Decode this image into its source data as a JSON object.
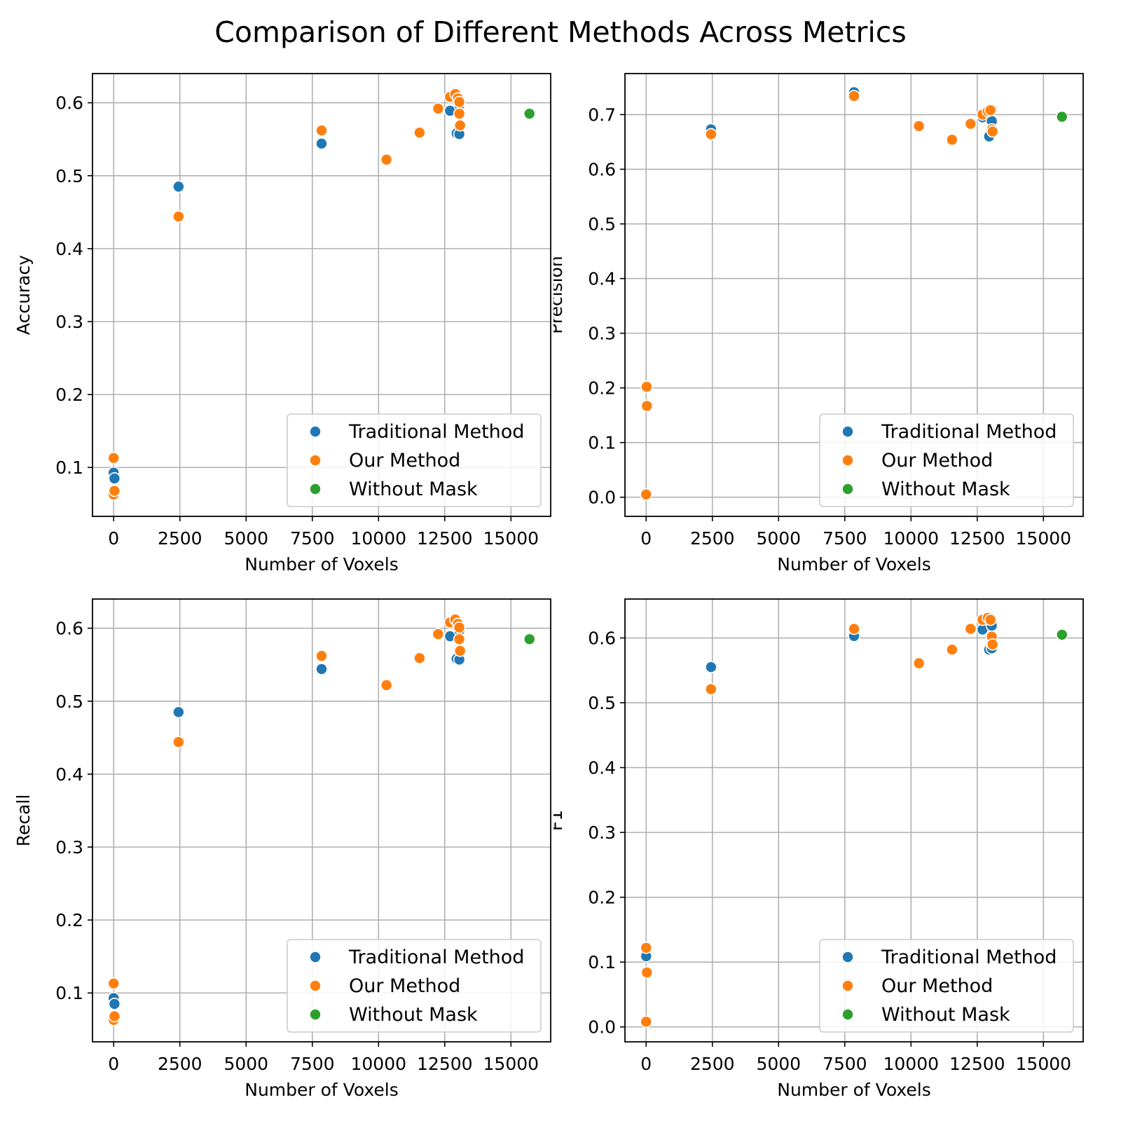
{
  "figure": {
    "title": "Comparison of Different Methods Across Metrics"
  },
  "legend": {
    "placement": "lower right",
    "entries": [
      {
        "label": "Traditional Method",
        "color": "#1f77b4"
      },
      {
        "label": "Our Method",
        "color": "#ff7f0e"
      },
      {
        "label": "Without Mask",
        "color": "#2ca02c"
      }
    ]
  },
  "chart_data": [
    {
      "type": "scatter",
      "xlabel": "Number of Voxels",
      "ylabel": "Accuracy",
      "xlim": [
        -800,
        16500
      ],
      "ylim": [
        0.033,
        0.64
      ],
      "xticks": [
        0,
        2500,
        5000,
        7500,
        10000,
        12500,
        15000
      ],
      "yticks": [
        0.1,
        0.2,
        0.3,
        0.4,
        0.5,
        0.6
      ],
      "ytick_labels": [
        "0.1",
        "0.2",
        "0.3",
        "0.4",
        "0.5",
        "0.6"
      ],
      "grid": true,
      "series": [
        {
          "name": "Traditional Method",
          "color": "#1f77b4",
          "points": [
            [
              0,
              0.093
            ],
            [
              30,
              0.085
            ],
            [
              2450,
              0.485
            ],
            [
              7850,
              0.544
            ],
            [
              12700,
              0.589
            ],
            [
              12950,
              0.558
            ],
            [
              13050,
              0.557
            ],
            [
              13050,
              0.597
            ]
          ]
        },
        {
          "name": "Our Method",
          "color": "#ff7f0e",
          "points": [
            [
              0,
              0.113
            ],
            [
              0,
              0.063
            ],
            [
              30,
              0.068
            ],
            [
              2450,
              0.444
            ],
            [
              7850,
              0.562
            ],
            [
              10300,
              0.522
            ],
            [
              11550,
              0.559
            ],
            [
              12250,
              0.592
            ],
            [
              12700,
              0.608
            ],
            [
              12900,
              0.612
            ],
            [
              13000,
              0.606
            ],
            [
              13050,
              0.601
            ],
            [
              13050,
              0.585
            ],
            [
              13080,
              0.569
            ]
          ]
        },
        {
          "name": "Without Mask",
          "color": "#2ca02c",
          "points": [
            [
              15700,
              0.585
            ]
          ]
        }
      ]
    },
    {
      "type": "scatter",
      "xlabel": "Number of Voxels",
      "ylabel": "Precision",
      "xlim": [
        -800,
        16500
      ],
      "ylim": [
        -0.035,
        0.775
      ],
      "xticks": [
        0,
        2500,
        5000,
        7500,
        10000,
        12500,
        15000
      ],
      "yticks": [
        0.0,
        0.1,
        0.2,
        0.3,
        0.4,
        0.5,
        0.6,
        0.7
      ],
      "ytick_labels": [
        "0.0",
        "0.1",
        "0.2",
        "0.3",
        "0.4",
        "0.5",
        "0.6",
        "0.7"
      ],
      "grid": true,
      "series": [
        {
          "name": "Traditional Method",
          "color": "#1f77b4",
          "points": [
            [
              2450,
              0.673
            ],
            [
              7850,
              0.741
            ],
            [
              12700,
              0.695
            ],
            [
              12950,
              0.66
            ],
            [
              13050,
              0.709
            ],
            [
              13050,
              0.688
            ]
          ]
        },
        {
          "name": "Our Method",
          "color": "#ff7f0e",
          "points": [
            [
              0,
              0.005
            ],
            [
              20,
              0.202
            ],
            [
              30,
              0.167
            ],
            [
              2450,
              0.664
            ],
            [
              7850,
              0.734
            ],
            [
              10300,
              0.679
            ],
            [
              11550,
              0.654
            ],
            [
              12250,
              0.683
            ],
            [
              12700,
              0.7
            ],
            [
              12900,
              0.706
            ],
            [
              13000,
              0.708
            ],
            [
              13050,
              0.673
            ],
            [
              13080,
              0.669
            ]
          ]
        },
        {
          "name": "Without Mask",
          "color": "#2ca02c",
          "points": [
            [
              15700,
              0.696
            ]
          ]
        }
      ]
    },
    {
      "type": "scatter",
      "xlabel": "Number of Voxels",
      "ylabel": "Recall",
      "xlim": [
        -800,
        16500
      ],
      "ylim": [
        0.033,
        0.64
      ],
      "xticks": [
        0,
        2500,
        5000,
        7500,
        10000,
        12500,
        15000
      ],
      "yticks": [
        0.1,
        0.2,
        0.3,
        0.4,
        0.5,
        0.6
      ],
      "ytick_labels": [
        "0.1",
        "0.2",
        "0.3",
        "0.4",
        "0.5",
        "0.6"
      ],
      "grid": true,
      "series": [
        {
          "name": "Traditional Method",
          "color": "#1f77b4",
          "points": [
            [
              0,
              0.093
            ],
            [
              30,
              0.085
            ],
            [
              2450,
              0.485
            ],
            [
              7850,
              0.544
            ],
            [
              12700,
              0.589
            ],
            [
              12950,
              0.558
            ],
            [
              13050,
              0.557
            ],
            [
              13050,
              0.597
            ]
          ]
        },
        {
          "name": "Our Method",
          "color": "#ff7f0e",
          "points": [
            [
              0,
              0.113
            ],
            [
              0,
              0.063
            ],
            [
              30,
              0.068
            ],
            [
              2450,
              0.444
            ],
            [
              7850,
              0.562
            ],
            [
              10300,
              0.522
            ],
            [
              11550,
              0.559
            ],
            [
              12250,
              0.592
            ],
            [
              12700,
              0.608
            ],
            [
              12900,
              0.612
            ],
            [
              13000,
              0.606
            ],
            [
              13050,
              0.601
            ],
            [
              13050,
              0.585
            ],
            [
              13080,
              0.569
            ]
          ]
        },
        {
          "name": "Without Mask",
          "color": "#2ca02c",
          "points": [
            [
              15700,
              0.585
            ]
          ]
        }
      ]
    },
    {
      "type": "scatter",
      "xlabel": "Number of Voxels",
      "ylabel": "F1",
      "xlim": [
        -800,
        16500
      ],
      "ylim": [
        -0.023,
        0.66
      ],
      "xticks": [
        0,
        2500,
        5000,
        7500,
        10000,
        12500,
        15000
      ],
      "yticks": [
        0.0,
        0.1,
        0.2,
        0.3,
        0.4,
        0.5,
        0.6
      ],
      "ytick_labels": [
        "0.0",
        "0.1",
        "0.2",
        "0.3",
        "0.4",
        "0.5",
        "0.6"
      ],
      "grid": true,
      "series": [
        {
          "name": "Traditional Method",
          "color": "#1f77b4",
          "points": [
            [
              0,
              0.109
            ],
            [
              2450,
              0.555
            ],
            [
              7850,
              0.603
            ],
            [
              12700,
              0.613
            ],
            [
              12950,
              0.582
            ],
            [
              13050,
              0.584
            ],
            [
              13050,
              0.619
            ]
          ]
        },
        {
          "name": "Our Method",
          "color": "#ff7f0e",
          "points": [
            [
              0,
              0.122
            ],
            [
              0,
              0.008
            ],
            [
              30,
              0.084
            ],
            [
              2450,
              0.521
            ],
            [
              7850,
              0.614
            ],
            [
              10300,
              0.561
            ],
            [
              11550,
              0.582
            ],
            [
              12250,
              0.614
            ],
            [
              12700,
              0.628
            ],
            [
              12900,
              0.631
            ],
            [
              13000,
              0.628
            ],
            [
              13050,
              0.602
            ],
            [
              13080,
              0.59
            ]
          ]
        },
        {
          "name": "Without Mask",
          "color": "#2ca02c",
          "points": [
            [
              15700,
              0.605
            ]
          ]
        }
      ]
    }
  ]
}
